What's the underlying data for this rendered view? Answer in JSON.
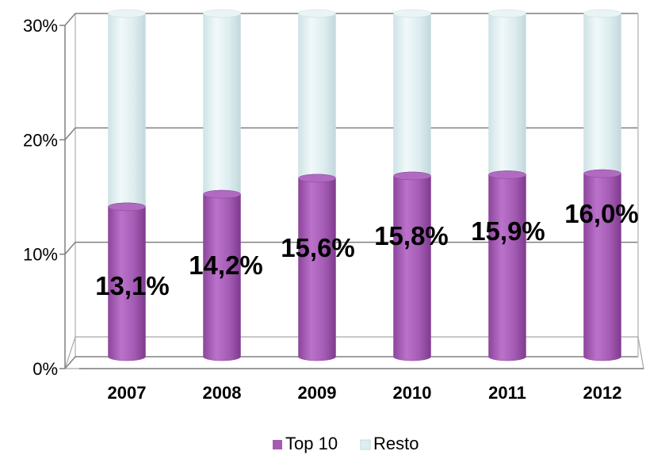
{
  "chart_data": {
    "type": "bar",
    "stacked": true,
    "style": "3d-cylinder",
    "categories": [
      "2007",
      "2008",
      "2009",
      "2010",
      "2011",
      "2012"
    ],
    "series": [
      {
        "name": "Top 10",
        "values": [
          13.1,
          14.2,
          15.6,
          15.8,
          15.9,
          16.0
        ],
        "color": "#a35bb3"
      },
      {
        "name": "Resto",
        "values": [
          16.9,
          15.8,
          14.4,
          14.2,
          14.1,
          14.0
        ],
        "color": "#ddeef0"
      }
    ],
    "data_labels": [
      "13,1%",
      "14,2%",
      "15,6%",
      "15,8%",
      "15,9%",
      "16,0%"
    ],
    "y_ticks": [
      "0%",
      "10%",
      "20%",
      "30%"
    ],
    "ylim": [
      0,
      30
    ],
    "grid": true,
    "legend": "bottom"
  }
}
